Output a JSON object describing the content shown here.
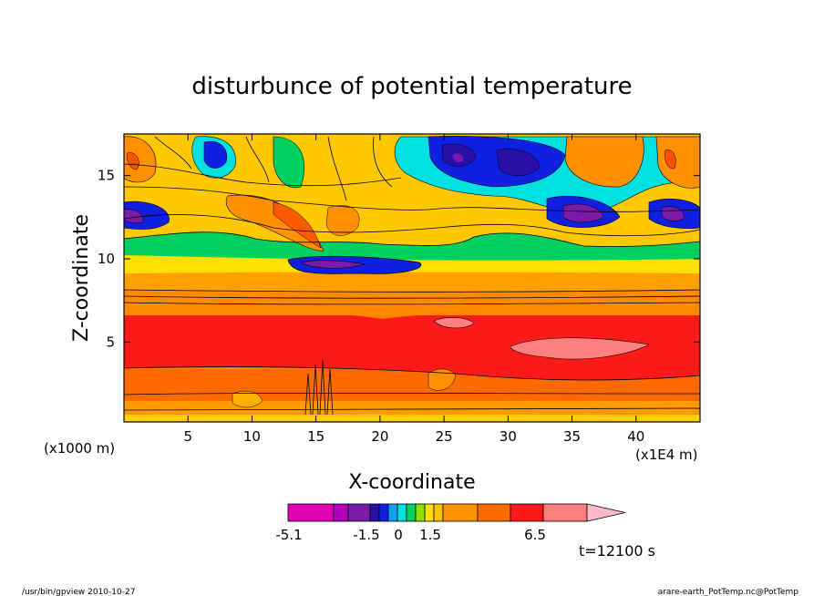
{
  "chart_data": {
    "type": "heatmap",
    "title": "disturbunce of potential temperature",
    "xlabel": "X-coordinate",
    "ylabel": "Z-coordinate",
    "x_unit_left": "(x1000 m)",
    "x_unit_right": "(x1E4 m)",
    "xlim": [
      0,
      45
    ],
    "ylim": [
      0.2,
      17.5
    ],
    "x_ticks": [
      5,
      10,
      15,
      20,
      25,
      30,
      35,
      40
    ],
    "y_ticks": [
      5,
      10,
      15
    ],
    "colorbar": {
      "colors": [
        "#e000b0",
        "#b000b8",
        "#7a1aa8",
        "#2a10a8",
        "#1020e0",
        "#10a0ff",
        "#00e0e0",
        "#00d060",
        "#90e000",
        "#ffe000",
        "#ffc000",
        "#ff9000",
        "#ff6a00",
        "#ff1a1a",
        "#ff7f7f",
        "#ffb8c8"
      ],
      "tick_labels": [
        "-5.1",
        "-1.5",
        "0",
        "1.5",
        "6.5"
      ]
    },
    "time_label": "t=12100 s"
  },
  "footer": {
    "left": "/usr/bin/gpview   2010-10-27",
    "right": "arare-earth_PotTemp.nc@PotTemp"
  }
}
